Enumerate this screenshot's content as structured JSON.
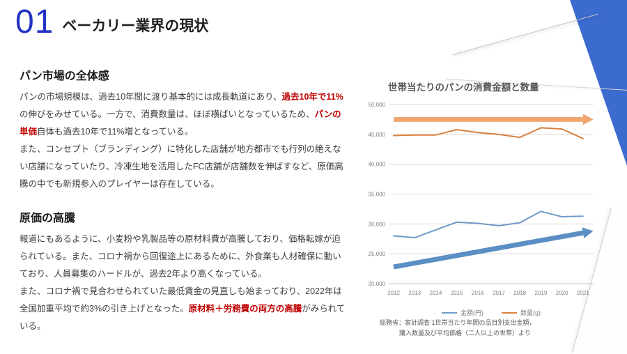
{
  "slide": {
    "number": "01",
    "title": "ベーカリー業界の現状"
  },
  "sections": [
    {
      "heading": "パン市場の全体感",
      "segments": [
        {
          "t": "パンの市場規模は、過去10年間に渡り基本的には成長軌道にあり、"
        },
        {
          "t": "過去10年で11%",
          "red": true
        },
        {
          "t": "の伸びをみせている。一方で、消費数量は、ほぼ横ばいとなっているため、"
        },
        {
          "t": "パンの単価",
          "red": true
        },
        {
          "t": "自体も過去10年で11%増となっている。"
        },
        {
          "br": true
        },
        {
          "t": "また、コンセプト（ブランディング）に特化した店舗が地方都市でも行列の絶えない店舗になっていたり、冷凍生地を活用したFC店舗が店舗数を伸ばすなど、原価高騰の中でも新規参入のプレイヤーは存在している。"
        }
      ]
    },
    {
      "heading": "原価の高騰",
      "segments": [
        {
          "t": "報道にもあるように、小麦粉や乳製品等の原材料費が高騰しており、価格転嫁が迫られている。また、コロナ禍から回復途上にあるために、外食業も人材確保に動いており、人員募集のハードルが、過去2年より高くなっている。"
        },
        {
          "br": true
        },
        {
          "t": "また、コロナ禍で見合わせられていた最低賃金の見直しも始まっており、2022年は全国加重平均で約3%の引き上げとなった。"
        },
        {
          "t": "原材料＋労務費の両方の高騰",
          "red": true
        },
        {
          "t": "がみられている。"
        }
      ]
    }
  ],
  "chart": {
    "title": "世帯当たりのパンの消費金額と数量",
    "legend": [
      {
        "label": "金額(円)",
        "color": "#6f9bc8"
      },
      {
        "label": "数量(g)",
        "color": "#d9813e"
      }
    ],
    "source_line1": "総務省：家計調査 1世帯当たり年間の品目別支出金額，",
    "source_line2": "購入数量及び平均価格（二人以上の世帯）より"
  },
  "chart_data": {
    "type": "line",
    "title": "世帯当たりのパンの消費金額と数量",
    "categories": [
      2012,
      2013,
      2014,
      2015,
      2016,
      2017,
      2018,
      2019,
      2020,
      2021
    ],
    "series": [
      {
        "name": "金額(円)",
        "color": "#6f9bc8",
        "values": [
          28000,
          27700,
          29000,
          30300,
          30100,
          29700,
          30200,
          32100,
          31200,
          31300
        ]
      },
      {
        "name": "数量(g)",
        "color": "#d9813e",
        "values": [
          44800,
          44900,
          44900,
          45800,
          45300,
          45000,
          44500,
          46100,
          45900,
          44300
        ]
      }
    ],
    "ylim": [
      20000,
      50000
    ],
    "yticks": [
      20000,
      25000,
      30000,
      35000,
      40000,
      45000,
      50000
    ],
    "grid": true,
    "legend_position": "bottom",
    "annotations": [
      {
        "name": "quantity-trend-arrow",
        "color": "#f0a76f",
        "from_year": 2012,
        "to_year": 2021,
        "from_value": 47500,
        "to_value": 47500
      },
      {
        "name": "amount-trend-arrow",
        "color": "#5b8ec4",
        "from_year": 2012,
        "to_year": 2021,
        "from_value": 22800,
        "to_value": 28500
      }
    ]
  },
  "colors": {
    "accent_blue": "#2433c5",
    "decoration_blue": "#3c6bd0",
    "emphasis_red": "#c00000",
    "grid_gray": "#dcdcdc",
    "axis_text_gray": "#7f7f7f",
    "chart_title_gray": "#595959"
  }
}
